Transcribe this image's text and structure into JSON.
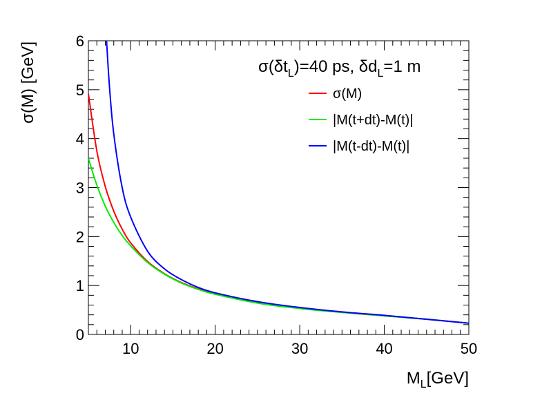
{
  "chart_data": {
    "type": "line",
    "title": "",
    "annotation": {
      "sigma": "σ(δt",
      "sub1": "L",
      "mid": ")=40 ps, δd",
      "sub2": "L",
      "end": "=1 m"
    },
    "xlabel": {
      "main": "M",
      "sub": "L",
      "rest": "[GeV]"
    },
    "ylabel": "σ(M) [GeV]",
    "xlim": [
      5,
      50
    ],
    "ylim": [
      0,
      6
    ],
    "xticks": [
      10,
      20,
      30,
      40,
      50
    ],
    "yticks": [
      0,
      1,
      2,
      3,
      4,
      5,
      6
    ],
    "grid": false,
    "legend_position": "top-right",
    "series": [
      {
        "name": "σ(M)",
        "color": "#ff0000",
        "x": [
          5,
          6,
          7,
          8,
          9,
          10,
          12,
          14,
          16,
          18,
          20,
          25,
          30,
          35,
          40,
          45,
          50
        ],
        "values": [
          4.92,
          3.75,
          3.02,
          2.52,
          2.15,
          1.87,
          1.49,
          1.24,
          1.06,
          0.93,
          0.83,
          0.65,
          0.54,
          0.45,
          0.38,
          0.31,
          0.23
        ]
      },
      {
        "name": "|M(t+dt)-M(t)|",
        "color": "#00ee00",
        "x": [
          5,
          6,
          7,
          8,
          9,
          10,
          12,
          14,
          16,
          18,
          20,
          25,
          30,
          35,
          40,
          45,
          50
        ],
        "values": [
          3.6,
          3.05,
          2.62,
          2.29,
          2.02,
          1.81,
          1.47,
          1.23,
          1.05,
          0.92,
          0.82,
          0.64,
          0.53,
          0.45,
          0.38,
          0.31,
          0.23
        ]
      },
      {
        "name": "|M(t-dt)-M(t)|",
        "color": "#0000ff",
        "x": [
          7.15,
          7.5,
          8,
          9,
          10,
          12,
          14,
          16,
          18,
          20,
          25,
          30,
          35,
          40,
          45,
          50
        ],
        "values": [
          6.0,
          5.05,
          4.1,
          3.0,
          2.4,
          1.7,
          1.34,
          1.12,
          0.96,
          0.85,
          0.67,
          0.55,
          0.46,
          0.39,
          0.31,
          0.23
        ]
      }
    ]
  }
}
